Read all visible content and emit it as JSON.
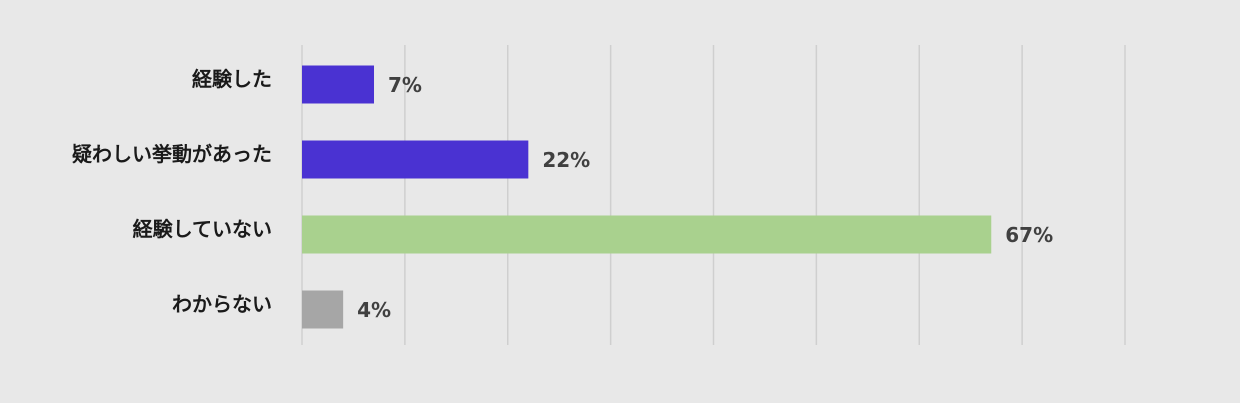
{
  "chart_data": {
    "type": "bar",
    "orientation": "horizontal",
    "categories": [
      "経験した",
      "疑わしい挙動があった",
      "経験していない",
      "わからない"
    ],
    "values": [
      7,
      22,
      67,
      4
    ],
    "value_labels": [
      "7%",
      "22%",
      "67%",
      "4%"
    ],
    "colors": [
      "#4a32d2",
      "#4a32d2",
      "#a9d18e",
      "#a6a6a6"
    ],
    "xlim": [
      0,
      80
    ],
    "xticks": [
      0,
      10,
      20,
      30,
      40,
      50,
      60,
      70,
      80
    ],
    "grid": true
  }
}
